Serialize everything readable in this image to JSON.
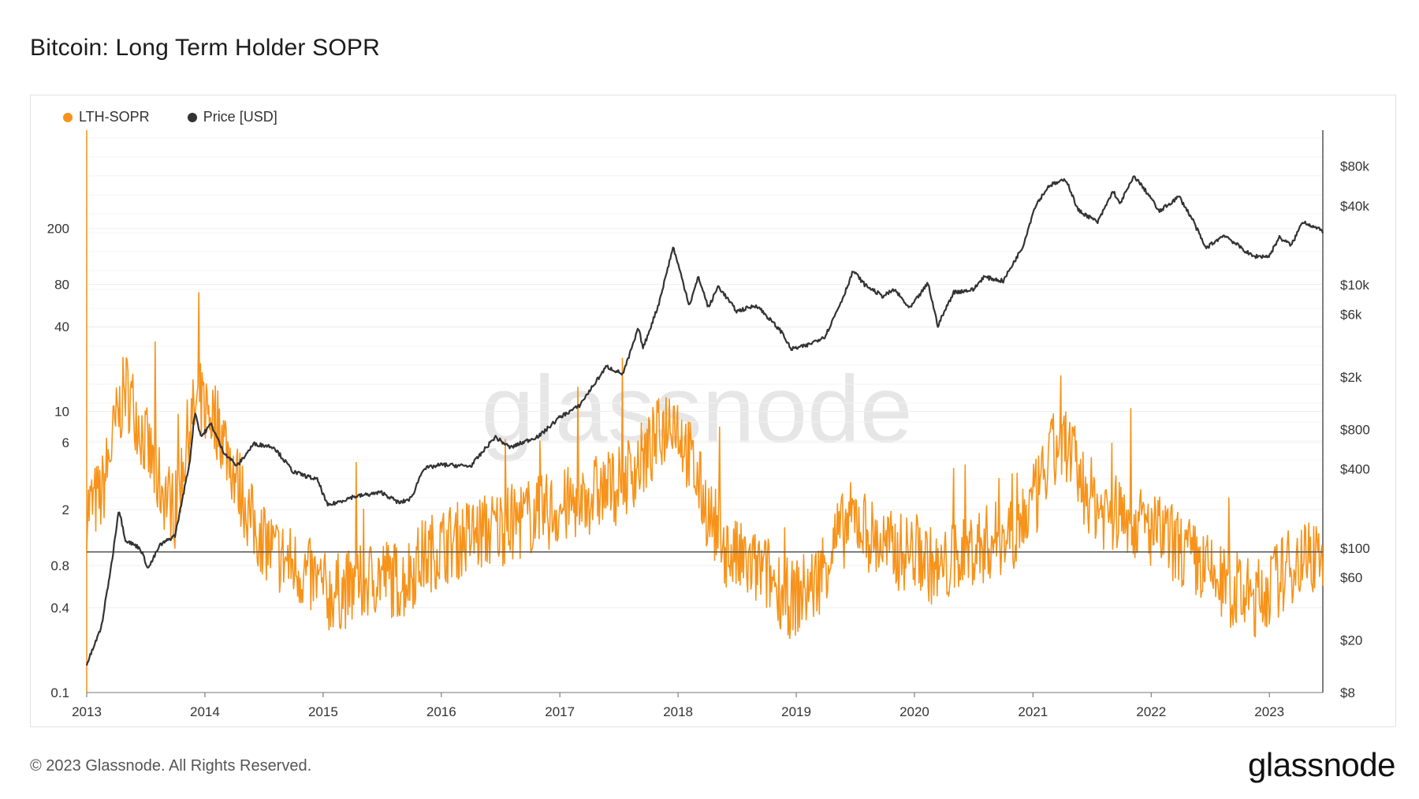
{
  "title": "Bitcoin: Long Term Holder SOPR",
  "legend": [
    {
      "label": "LTH-SOPR",
      "color": "#f7931a"
    },
    {
      "label": "Price [USD]",
      "color": "#333333"
    }
  ],
  "watermark": "glassnode",
  "footer": {
    "copyright": "© 2023 Glassnode. All Rights Reserved.",
    "brand": "glassnode"
  },
  "chart_data": {
    "type": "line",
    "title": "Bitcoin: Long Term Holder SOPR",
    "x_range": [
      "2013-01-01",
      "2023-06-15"
    ],
    "x_ticks": [
      "2013",
      "2014",
      "2015",
      "2016",
      "2017",
      "2018",
      "2019",
      "2020",
      "2021",
      "2022",
      "2023"
    ],
    "y_left": {
      "scale": "log",
      "range": [
        0.1,
        1000
      ],
      "ticks": [
        0.1,
        0.4,
        0.8,
        2,
        6,
        10,
        40,
        80,
        200
      ],
      "tick_labels": [
        "0.1",
        "0.4",
        "0.8",
        "2",
        "6",
        "10",
        "40",
        "80",
        "200"
      ]
    },
    "y_right": {
      "scale": "log",
      "range": [
        8,
        150000
      ],
      "ticks": [
        8,
        20,
        60,
        100,
        400,
        800,
        2000,
        6000,
        10000,
        40000,
        80000
      ],
      "tick_labels": [
        "$8",
        "$20",
        "$60",
        "$100",
        "$400",
        "$800",
        "$2k",
        "$6k",
        "$10k",
        "$40k",
        "$80k"
      ]
    },
    "reference_line": {
      "axis": "left",
      "value": 1
    },
    "grid": true,
    "legend_position": "top-left",
    "series": [
      {
        "name": "LTH-SOPR",
        "axis": "left",
        "color": "#f7931a",
        "points": [
          [
            "2013-01-01",
            2.0
          ],
          [
            "2013-02-15",
            2.5
          ],
          [
            "2013-04-01",
            8
          ],
          [
            "2013-05-01",
            15
          ],
          [
            "2013-06-01",
            10
          ],
          [
            "2013-07-01",
            6
          ],
          [
            "2013-08-15",
            3
          ],
          [
            "2013-10-01",
            2
          ],
          [
            "2013-11-15",
            8
          ],
          [
            "2013-12-15",
            12
          ],
          [
            "2014-01-15",
            10
          ],
          [
            "2014-02-15",
            8
          ],
          [
            "2014-03-15",
            5
          ],
          [
            "2014-04-15",
            3
          ],
          [
            "2014-06-01",
            1.5
          ],
          [
            "2014-08-01",
            1.0
          ],
          [
            "2014-10-01",
            0.8
          ],
          [
            "2014-12-15",
            0.6
          ],
          [
            "2015-01-15",
            0.5
          ],
          [
            "2015-04-01",
            0.55
          ],
          [
            "2015-07-01",
            0.7
          ],
          [
            "2015-09-01",
            0.6
          ],
          [
            "2015-11-01",
            0.9
          ],
          [
            "2016-01-01",
            1.1
          ],
          [
            "2016-04-01",
            1.3
          ],
          [
            "2016-07-01",
            1.5
          ],
          [
            "2016-10-01",
            1.8
          ],
          [
            "2017-01-01",
            2.0
          ],
          [
            "2017-04-01",
            2.5
          ],
          [
            "2017-07-01",
            3.0
          ],
          [
            "2017-10-01",
            5.0
          ],
          [
            "2017-12-15",
            10
          ],
          [
            "2018-02-01",
            5
          ],
          [
            "2018-04-01",
            2.0
          ],
          [
            "2018-06-01",
            1.0
          ],
          [
            "2018-08-01",
            0.8
          ],
          [
            "2018-10-01",
            0.7
          ],
          [
            "2018-12-15",
            0.45
          ],
          [
            "2019-03-01",
            0.6
          ],
          [
            "2019-05-01",
            1.2
          ],
          [
            "2019-07-01",
            1.8
          ],
          [
            "2019-09-01",
            1.2
          ],
          [
            "2019-11-01",
            1.0
          ],
          [
            "2020-01-15",
            1.0
          ],
          [
            "2020-03-15",
            0.7
          ],
          [
            "2020-06-01",
            1.0
          ],
          [
            "2020-09-01",
            1.2
          ],
          [
            "2020-11-15",
            1.5
          ],
          [
            "2021-01-15",
            2.5
          ],
          [
            "2021-03-01",
            5
          ],
          [
            "2021-04-15",
            6
          ],
          [
            "2021-06-01",
            3
          ],
          [
            "2021-08-01",
            2.0
          ],
          [
            "2021-10-15",
            1.8
          ],
          [
            "2021-12-15",
            1.5
          ],
          [
            "2022-03-01",
            1.2
          ],
          [
            "2022-06-01",
            0.8
          ],
          [
            "2022-08-01",
            0.6
          ],
          [
            "2022-11-15",
            0.45
          ],
          [
            "2023-01-15",
            0.6
          ],
          [
            "2023-04-01",
            0.9
          ],
          [
            "2023-06-15",
            1.0
          ]
        ]
      },
      {
        "name": "Price [USD]",
        "axis": "right",
        "color": "#333333",
        "points": [
          [
            "2013-01-01",
            13
          ],
          [
            "2013-02-15",
            25
          ],
          [
            "2013-03-20",
            80
          ],
          [
            "2013-04-10",
            200
          ],
          [
            "2013-05-01",
            115
          ],
          [
            "2013-06-15",
            100
          ],
          [
            "2013-07-10",
            70
          ],
          [
            "2013-08-15",
            105
          ],
          [
            "2013-10-01",
            125
          ],
          [
            "2013-11-15",
            450
          ],
          [
            "2013-12-01",
            1100
          ],
          [
            "2013-12-20",
            700
          ],
          [
            "2014-01-20",
            880
          ],
          [
            "2014-02-25",
            550
          ],
          [
            "2014-04-10",
            420
          ],
          [
            "2014-06-01",
            620
          ],
          [
            "2014-08-01",
            590
          ],
          [
            "2014-10-01",
            380
          ],
          [
            "2014-12-15",
            330
          ],
          [
            "2015-01-15",
            210
          ],
          [
            "2015-04-01",
            245
          ],
          [
            "2015-07-01",
            265
          ],
          [
            "2015-08-25",
            220
          ],
          [
            "2015-10-01",
            240
          ],
          [
            "2015-11-05",
            400
          ],
          [
            "2016-01-01",
            430
          ],
          [
            "2016-04-01",
            420
          ],
          [
            "2016-06-15",
            700
          ],
          [
            "2016-08-01",
            580
          ],
          [
            "2016-11-01",
            720
          ],
          [
            "2017-01-01",
            990
          ],
          [
            "2017-03-01",
            1200
          ],
          [
            "2017-05-25",
            2400
          ],
          [
            "2017-07-15",
            2100
          ],
          [
            "2017-09-01",
            4700
          ],
          [
            "2017-09-15",
            3300
          ],
          [
            "2017-11-01",
            7000
          ],
          [
            "2017-12-17",
            19500
          ],
          [
            "2018-02-05",
            7000
          ],
          [
            "2018-03-05",
            11500
          ],
          [
            "2018-04-05",
            6700
          ],
          [
            "2018-05-05",
            9800
          ],
          [
            "2018-07-01",
            6300
          ],
          [
            "2018-09-01",
            7000
          ],
          [
            "2018-11-20",
            4300
          ],
          [
            "2018-12-15",
            3250
          ],
          [
            "2019-02-01",
            3450
          ],
          [
            "2019-04-01",
            4100
          ],
          [
            "2019-05-25",
            8000
          ],
          [
            "2019-06-26",
            12800
          ],
          [
            "2019-08-01",
            10000
          ],
          [
            "2019-09-25",
            8200
          ],
          [
            "2019-11-01",
            9200
          ],
          [
            "2019-12-17",
            6600
          ],
          [
            "2020-02-12",
            10300
          ],
          [
            "2020-03-13",
            4900
          ],
          [
            "2020-05-01",
            8800
          ],
          [
            "2020-07-01",
            9200
          ],
          [
            "2020-08-01",
            11500
          ],
          [
            "2020-10-01",
            10700
          ],
          [
            "2020-11-30",
            19500
          ],
          [
            "2021-01-08",
            40000
          ],
          [
            "2021-02-20",
            57000
          ],
          [
            "2021-04-14",
            63000
          ],
          [
            "2021-05-20",
            37000
          ],
          [
            "2021-07-20",
            30000
          ],
          [
            "2021-09-06",
            52000
          ],
          [
            "2021-09-25",
            41000
          ],
          [
            "2021-11-10",
            67000
          ],
          [
            "2021-12-31",
            46000
          ],
          [
            "2022-01-25",
            36000
          ],
          [
            "2022-03-28",
            47000
          ],
          [
            "2022-05-10",
            31000
          ],
          [
            "2022-06-18",
            19000
          ],
          [
            "2022-08-15",
            24000
          ],
          [
            "2022-10-01",
            19500
          ],
          [
            "2022-11-10",
            16500
          ],
          [
            "2022-12-31",
            16500
          ],
          [
            "2023-01-31",
            23000
          ],
          [
            "2023-03-10",
            20000
          ],
          [
            "2023-04-14",
            30500
          ],
          [
            "2023-06-15",
            25500
          ]
        ]
      }
    ]
  }
}
